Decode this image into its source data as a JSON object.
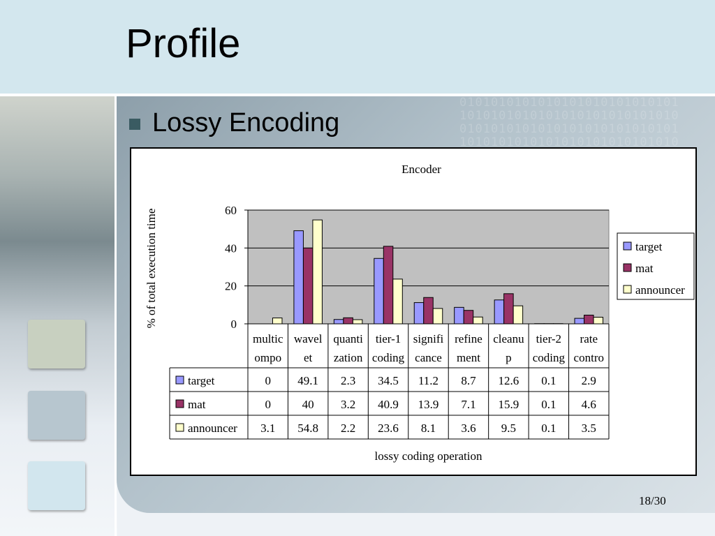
{
  "slide": {
    "title": "Profile",
    "bullet": "Lossy Encoding",
    "page_number": "18/30"
  },
  "colors": {
    "target": "#9999ff",
    "mat": "#993366",
    "announcer": "#ffffcc",
    "plot_bg": "#c0c0c0"
  },
  "chart_data": {
    "type": "bar",
    "title": "Encoder",
    "xlabel": "lossy coding operation",
    "ylabel": "% of total execution time",
    "ylim": [
      0,
      60
    ],
    "yticks": [
      "0",
      "20",
      "40",
      "60"
    ],
    "categories": [
      [
        "multic",
        "ompo"
      ],
      [
        "wavel",
        "et"
      ],
      [
        "quanti",
        "zation"
      ],
      [
        "tier-1",
        "coding"
      ],
      [
        "signifi",
        "cance"
      ],
      [
        "refine",
        "ment"
      ],
      [
        "cleanu",
        "p"
      ],
      [
        "tier-2",
        "coding"
      ],
      [
        "rate",
        "contro"
      ]
    ],
    "series": [
      {
        "name": "target",
        "values": [
          0,
          49.1,
          2.3,
          34.5,
          11.2,
          8.7,
          12.6,
          0.1,
          2.9
        ]
      },
      {
        "name": "mat",
        "values": [
          0,
          40,
          3.2,
          40.9,
          13.9,
          7.1,
          15.9,
          0.1,
          4.6
        ]
      },
      {
        "name": "announcer",
        "values": [
          3.1,
          54.8,
          2.2,
          23.6,
          8.1,
          3.6,
          9.5,
          0.1,
          3.5
        ]
      }
    ],
    "legend_placement": "right",
    "grid": true,
    "data_table": true
  }
}
